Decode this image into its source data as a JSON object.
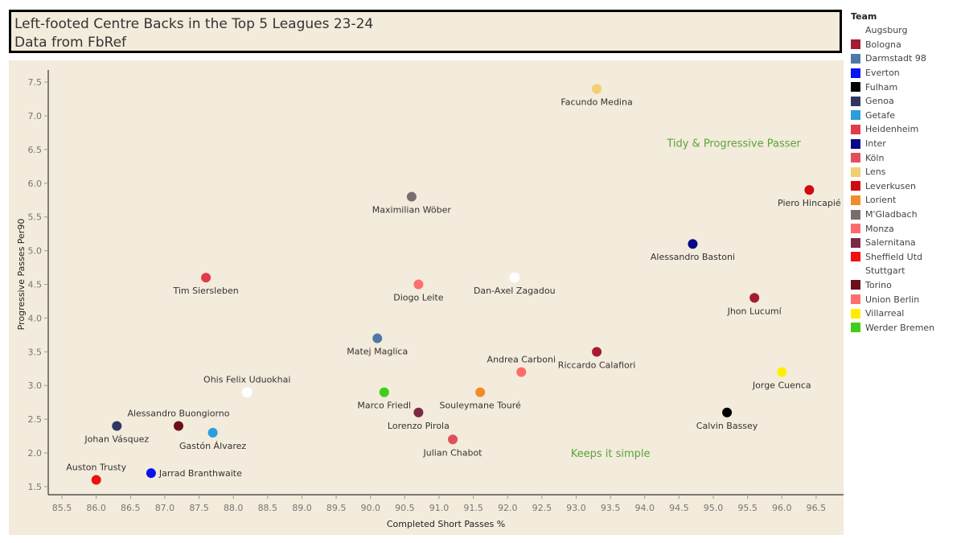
{
  "title": {
    "line1": "Left-footed Centre Backs in the Top 5 Leagues 23-24",
    "line2": "Data from FbRef"
  },
  "legend": {
    "title": "Team",
    "items": [
      {
        "label": "Augsburg",
        "color": "#ffffff"
      },
      {
        "label": "Bologna",
        "color": "#a51c30"
      },
      {
        "label": "Darmstadt 98",
        "color": "#4e79a7"
      },
      {
        "label": "Everton",
        "color": "#0a14ee"
      },
      {
        "label": "Fulham",
        "color": "#000000"
      },
      {
        "label": "Genoa",
        "color": "#2f3760"
      },
      {
        "label": "Getafe",
        "color": "#2b9ede"
      },
      {
        "label": "Heidenheim",
        "color": "#e03c4c"
      },
      {
        "label": "Inter",
        "color": "#06088a"
      },
      {
        "label": "Köln",
        "color": "#e0505b"
      },
      {
        "label": "Lens",
        "color": "#f2cf72"
      },
      {
        "label": "Leverkusen",
        "color": "#d10a10"
      },
      {
        "label": "Lorient",
        "color": "#f28c28"
      },
      {
        "label": "M'Gladbach",
        "color": "#7a6e6b"
      },
      {
        "label": "Monza",
        "color": "#ff6b6b"
      },
      {
        "label": "Salernitana",
        "color": "#7a2a44"
      },
      {
        "label": "Sheffield Utd",
        "color": "#ee1111"
      },
      {
        "label": "Stuttgart",
        "color": "#ffffff"
      },
      {
        "label": "Torino",
        "color": "#6b0f1a"
      },
      {
        "label": "Union Berlin",
        "color": "#ff6f6f"
      },
      {
        "label": "Villarreal",
        "color": "#ffee00"
      },
      {
        "label": "Werder Bremen",
        "color": "#3fcf1a"
      }
    ]
  },
  "chart_data": {
    "type": "scatter",
    "xlabel": "Completed Short Passes %",
    "ylabel": "Progressive Passes Per90",
    "xlim": [
      85.3,
      96.9
    ],
    "ylim": [
      1.38,
      7.68
    ],
    "xticks": [
      "85.5",
      "86.0",
      "86.5",
      "87.0",
      "87.5",
      "88.0",
      "88.5",
      "89.0",
      "89.5",
      "90.0",
      "90.5",
      "91.0",
      "91.5",
      "92.0",
      "92.5",
      "93.0",
      "93.5",
      "94.0",
      "94.5",
      "95.0",
      "95.5",
      "96.0",
      "96.5"
    ],
    "yticks": [
      "1.5",
      "2.0",
      "2.5",
      "3.0",
      "3.5",
      "4.0",
      "4.5",
      "5.0",
      "5.5",
      "6.0",
      "6.5",
      "7.0",
      "7.5"
    ],
    "grid": false,
    "legend_position": "right",
    "annotations": [
      {
        "text": "Tidy & Progressive Passer",
        "x": 95.3,
        "y": 6.6
      },
      {
        "text": "Keeps it simple",
        "x": 93.5,
        "y": 2.0
      }
    ],
    "points": [
      {
        "name": "Facundo Medina",
        "team": "Lens",
        "x": 93.3,
        "y": 7.4,
        "label_pos": "below"
      },
      {
        "name": "Maximilian Wöber",
        "team": "M'Gladbach",
        "x": 90.6,
        "y": 5.8,
        "label_pos": "below"
      },
      {
        "name": "Piero Hincapié",
        "team": "Leverkusen",
        "x": 96.4,
        "y": 5.9,
        "label_pos": "below"
      },
      {
        "name": "Alessandro Bastoni",
        "team": "Inter",
        "x": 94.7,
        "y": 5.1,
        "label_pos": "below"
      },
      {
        "name": "Tim Siersleben",
        "team": "Heidenheim",
        "x": 87.6,
        "y": 4.6,
        "label_pos": "below"
      },
      {
        "name": "Diogo Leite",
        "team": "Union Berlin",
        "x": 90.7,
        "y": 4.5,
        "label_pos": "below"
      },
      {
        "name": "Dan-Axel Zagadou",
        "team": "Stuttgart",
        "x": 92.1,
        "y": 4.6,
        "label_pos": "below"
      },
      {
        "name": "Jhon Lucumí",
        "team": "Bologna",
        "x": 95.6,
        "y": 4.3,
        "label_pos": "below"
      },
      {
        "name": "Matej Maglica",
        "team": "Darmstadt 98",
        "x": 90.1,
        "y": 3.7,
        "label_pos": "below"
      },
      {
        "name": "Riccardo Calafiori",
        "team": "Bologna",
        "x": 93.3,
        "y": 3.5,
        "label_pos": "below"
      },
      {
        "name": "Andrea Carboni",
        "team": "Monza",
        "x": 92.2,
        "y": 3.2,
        "label_pos": "above"
      },
      {
        "name": "Jorge Cuenca",
        "team": "Villarreal",
        "x": 96.0,
        "y": 3.2,
        "label_pos": "below"
      },
      {
        "name": "Ohis Felix Uduokhai",
        "team": "Augsburg",
        "x": 88.2,
        "y": 2.9,
        "label_pos": "above"
      },
      {
        "name": "Marco Friedl",
        "team": "Werder Bremen",
        "x": 90.2,
        "y": 2.9,
        "label_pos": "below"
      },
      {
        "name": "Souleymane Touré",
        "team": "Lorient",
        "x": 91.6,
        "y": 2.9,
        "label_pos": "below"
      },
      {
        "name": "Lorenzo Pirola",
        "team": "Salernitana",
        "x": 90.7,
        "y": 2.6,
        "label_pos": "below"
      },
      {
        "name": "Calvin Bassey",
        "team": "Fulham",
        "x": 95.2,
        "y": 2.6,
        "label_pos": "below"
      },
      {
        "name": "Alessandro Buongiorno",
        "team": "Torino",
        "x": 87.2,
        "y": 2.4,
        "label_pos": "above"
      },
      {
        "name": "Johan Vásquez",
        "team": "Genoa",
        "x": 86.3,
        "y": 2.4,
        "label_pos": "below"
      },
      {
        "name": "Gastón Álvarez",
        "team": "Getafe",
        "x": 87.7,
        "y": 2.3,
        "label_pos": "below"
      },
      {
        "name": "Julian Chabot",
        "team": "Köln",
        "x": 91.2,
        "y": 2.2,
        "label_pos": "below"
      },
      {
        "name": "Auston Trusty",
        "team": "Sheffield Utd",
        "x": 86.0,
        "y": 1.6,
        "label_pos": "above"
      },
      {
        "name": "Jarrad Branthwaite",
        "team": "Everton",
        "x": 86.8,
        "y": 1.7,
        "label_pos": "right"
      }
    ]
  }
}
